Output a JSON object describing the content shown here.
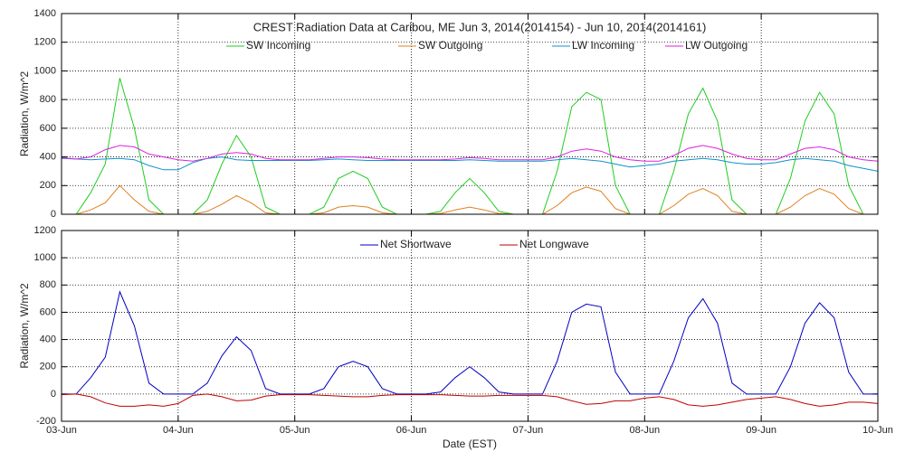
{
  "chart_data": [
    {
      "type": "line",
      "title": "CREST Radiation Data at Caribou, ME   Jun  3, 2014(2014154) - Jun 10, 2014(2014161)",
      "y_label": "Radiation, W/m^2",
      "x": [
        0,
        0.125,
        0.25,
        0.375,
        0.5,
        0.625,
        0.75,
        0.875,
        1,
        1.125,
        1.25,
        1.375,
        1.5,
        1.625,
        1.75,
        1.875,
        2,
        2.125,
        2.25,
        2.375,
        2.5,
        2.625,
        2.75,
        2.875,
        3,
        3.125,
        3.25,
        3.375,
        3.5,
        3.625,
        3.75,
        3.875,
        4,
        4.125,
        4.25,
        4.375,
        4.5,
        4.625,
        4.75,
        4.875,
        5,
        5.125,
        5.25,
        5.375,
        5.5,
        5.625,
        5.75,
        5.875,
        6,
        6.125,
        6.25,
        6.375,
        6.5,
        6.625,
        6.75,
        6.875,
        7
      ],
      "xlim": [
        0,
        7
      ],
      "ylim": [
        0,
        1400
      ],
      "yticks": [
        0,
        200,
        400,
        600,
        800,
        1000,
        1200,
        1400
      ],
      "grid": true,
      "series": [
        {
          "name": "SW Incoming",
          "color": "#22cc22",
          "values": [
            0,
            0,
            150,
            350,
            950,
            600,
            100,
            0,
            0,
            0,
            100,
            350,
            550,
            400,
            50,
            0,
            0,
            0,
            50,
            250,
            300,
            250,
            50,
            0,
            0,
            0,
            20,
            150,
            250,
            150,
            20,
            0,
            0,
            0,
            300,
            750,
            850,
            800,
            200,
            0,
            0,
            0,
            300,
            700,
            880,
            650,
            100,
            0,
            0,
            0,
            250,
            650,
            850,
            700,
            200,
            0,
            0
          ]
        },
        {
          "name": "SW Outgoing",
          "color": "#e08020",
          "values": [
            0,
            0,
            30,
            80,
            200,
            100,
            20,
            0,
            0,
            0,
            20,
            70,
            130,
            80,
            10,
            0,
            0,
            0,
            10,
            50,
            60,
            50,
            10,
            0,
            0,
            0,
            5,
            30,
            50,
            30,
            5,
            0,
            0,
            0,
            60,
            150,
            190,
            160,
            40,
            0,
            0,
            0,
            60,
            140,
            180,
            130,
            20,
            0,
            0,
            0,
            50,
            130,
            180,
            140,
            40,
            0,
            0
          ]
        },
        {
          "name": "LW Incoming",
          "color": "#1090d0",
          "values": [
            390,
            385,
            380,
            385,
            390,
            380,
            340,
            310,
            310,
            360,
            390,
            400,
            380,
            375,
            375,
            375,
            375,
            375,
            380,
            385,
            380,
            375,
            375,
            375,
            375,
            375,
            375,
            375,
            380,
            375,
            370,
            370,
            370,
            370,
            380,
            390,
            380,
            370,
            350,
            330,
            340,
            350,
            370,
            380,
            390,
            380,
            360,
            350,
            350,
            360,
            380,
            390,
            380,
            370,
            340,
            320,
            300
          ]
        },
        {
          "name": "LW Outgoing",
          "color": "#dd22dd",
          "values": [
            395,
            385,
            400,
            450,
            480,
            470,
            420,
            400,
            380,
            370,
            390,
            420,
            430,
            420,
            390,
            380,
            380,
            380,
            390,
            400,
            400,
            395,
            385,
            380,
            380,
            380,
            380,
            385,
            395,
            390,
            380,
            380,
            380,
            380,
            400,
            440,
            455,
            440,
            400,
            380,
            370,
            370,
            410,
            460,
            480,
            460,
            420,
            390,
            380,
            380,
            420,
            460,
            470,
            450,
            400,
            380,
            370
          ]
        }
      ]
    },
    {
      "type": "line",
      "y_label": "Radiation, W/m^2",
      "x_label": "Date (EST)",
      "x": [
        0,
        0.125,
        0.25,
        0.375,
        0.5,
        0.625,
        0.75,
        0.875,
        1,
        1.125,
        1.25,
        1.375,
        1.5,
        1.625,
        1.75,
        1.875,
        2,
        2.125,
        2.25,
        2.375,
        2.5,
        2.625,
        2.75,
        2.875,
        3,
        3.125,
        3.25,
        3.375,
        3.5,
        3.625,
        3.75,
        3.875,
        4,
        4.125,
        4.25,
        4.375,
        4.5,
        4.625,
        4.75,
        4.875,
        5,
        5.125,
        5.25,
        5.375,
        5.5,
        5.625,
        5.75,
        5.875,
        6,
        6.125,
        6.25,
        6.375,
        6.5,
        6.625,
        6.75,
        6.875,
        7
      ],
      "xlim": [
        0,
        7
      ],
      "xticks": [
        {
          "value": 0,
          "label": "03-Jun"
        },
        {
          "value": 1,
          "label": "04-Jun"
        },
        {
          "value": 2,
          "label": "05-Jun"
        },
        {
          "value": 3,
          "label": "06-Jun"
        },
        {
          "value": 4,
          "label": "07-Jun"
        },
        {
          "value": 5,
          "label": "08-Jun"
        },
        {
          "value": 6,
          "label": "09-Jun"
        },
        {
          "value": 7,
          "label": "10-Jun"
        }
      ],
      "ylim": [
        -200,
        1200
      ],
      "yticks": [
        -200,
        0,
        200,
        400,
        600,
        800,
        1000,
        1200
      ],
      "grid": true,
      "series": [
        {
          "name": "Net Shortwave",
          "color": "#0000c0",
          "values": [
            0,
            0,
            120,
            270,
            750,
            500,
            80,
            0,
            0,
            0,
            80,
            280,
            420,
            320,
            40,
            0,
            0,
            0,
            40,
            200,
            240,
            200,
            40,
            0,
            0,
            0,
            15,
            120,
            200,
            120,
            15,
            0,
            0,
            0,
            240,
            600,
            660,
            640,
            160,
            0,
            0,
            0,
            240,
            560,
            700,
            520,
            80,
            0,
            0,
            0,
            200,
            520,
            670,
            560,
            160,
            0,
            0
          ]
        },
        {
          "name": "Net Longwave",
          "color": "#c00000",
          "values": [
            -5,
            0,
            -20,
            -65,
            -90,
            -90,
            -80,
            -90,
            -70,
            -10,
            0,
            -20,
            -50,
            -45,
            -15,
            -5,
            -5,
            -5,
            -10,
            -15,
            -20,
            -20,
            -10,
            -5,
            -5,
            -5,
            -5,
            -10,
            -15,
            -15,
            -10,
            -10,
            -10,
            -10,
            -20,
            -50,
            -75,
            -70,
            -50,
            -50,
            -30,
            -20,
            -40,
            -80,
            -90,
            -80,
            -60,
            -40,
            -30,
            -20,
            -40,
            -70,
            -90,
            -80,
            -60,
            -60,
            -70
          ]
        }
      ]
    }
  ]
}
